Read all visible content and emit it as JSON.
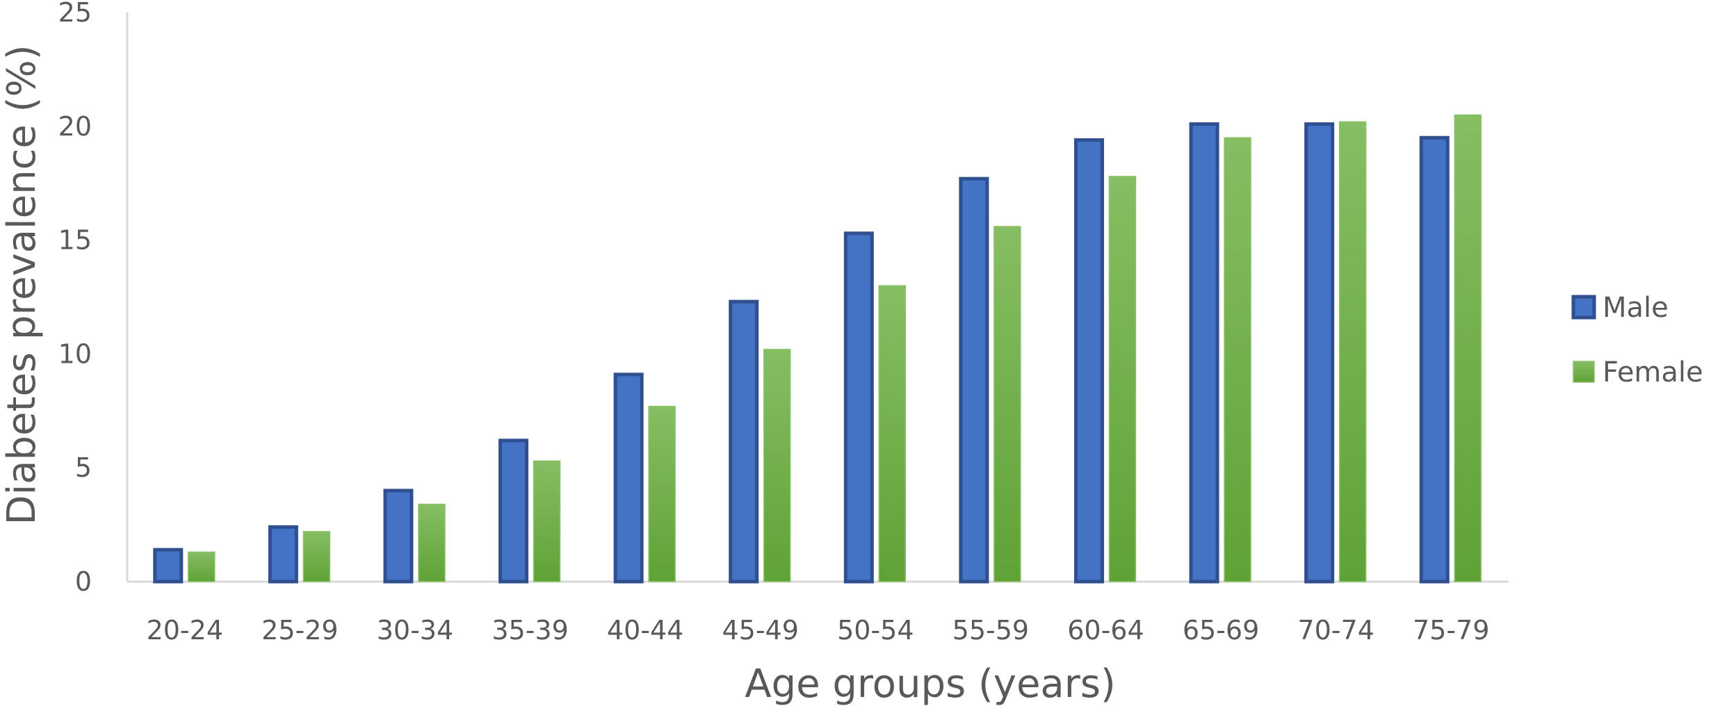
{
  "chart_data": {
    "type": "bar",
    "title": "",
    "xlabel": "Age groups (years)",
    "ylabel": "Diabetes prevalence (%)",
    "ylim": [
      0,
      25
    ],
    "yticks": [
      0,
      5,
      10,
      15,
      20,
      25
    ],
    "grid": false,
    "legend_position": "right",
    "categories": [
      "20-24",
      "25-29",
      "30-34",
      "35-39",
      "40-44",
      "45-49",
      "50-54",
      "55-59",
      "60-64",
      "65-69",
      "70-74",
      "75-79"
    ],
    "series": [
      {
        "name": "Male",
        "color": "#4472C4",
        "border": "#2F4F8F",
        "values": [
          1.4,
          2.4,
          4.0,
          6.2,
          9.1,
          12.3,
          15.3,
          17.7,
          19.4,
          20.1,
          20.1,
          19.5
        ]
      },
      {
        "name": "Female",
        "color": "#70AD47",
        "values": [
          1.3,
          2.2,
          3.4,
          5.3,
          7.7,
          10.2,
          13.0,
          15.6,
          17.8,
          19.5,
          20.2,
          20.5
        ]
      }
    ]
  }
}
